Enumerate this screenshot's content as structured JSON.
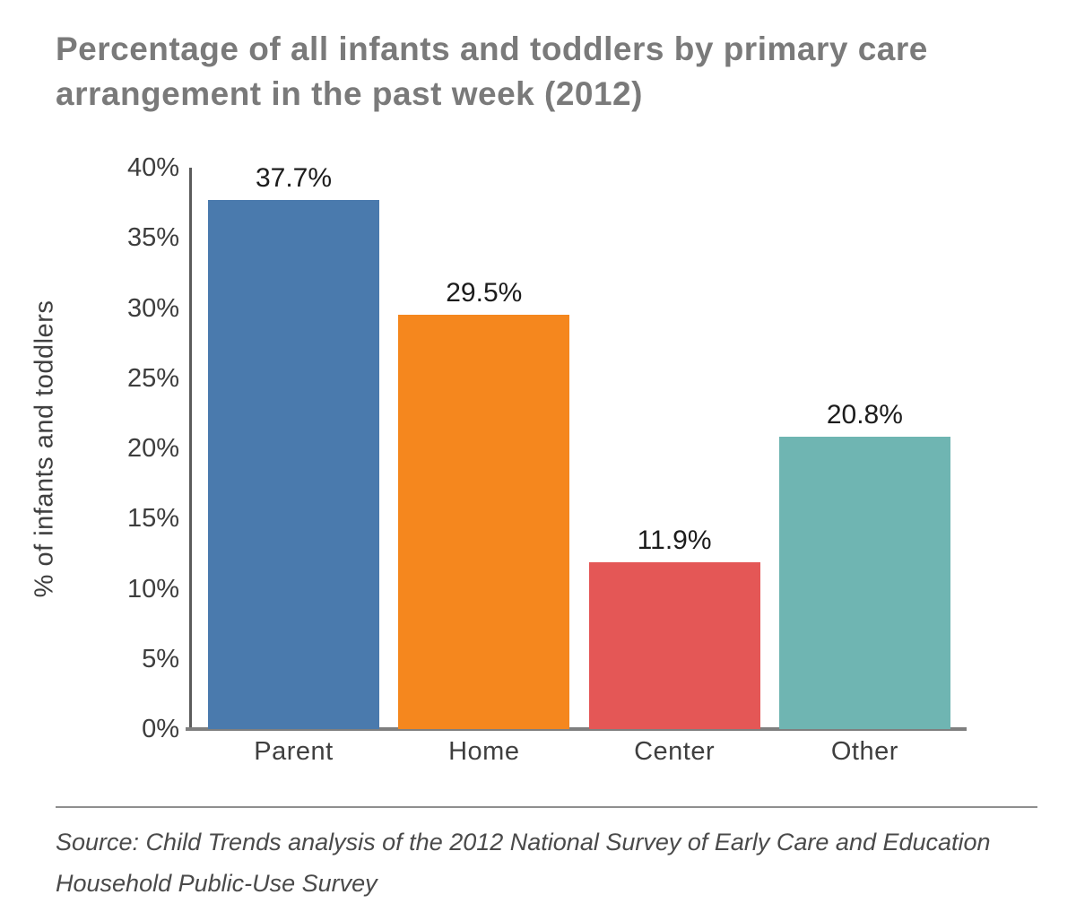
{
  "title": "Percentage of all infants and toddlers by primary care arrangement in the past week (2012)",
  "source": "Source: Child Trends analysis of the 2012 National Survey of Early Care and Education Household Public-Use Survey",
  "chart_data": {
    "type": "bar",
    "categories": [
      "Parent",
      "Home",
      "Center",
      "Other"
    ],
    "values": [
      37.7,
      29.5,
      11.9,
      20.8
    ],
    "value_labels": [
      "37.7%",
      "29.5%",
      "11.9%",
      "20.8%"
    ],
    "bar_colors": [
      "#4a7aad",
      "#f5871e",
      "#e45756",
      "#6fb5b2"
    ],
    "title": "Percentage of all infants and toddlers by primary care arrangement in the past week (2012)",
    "xlabel": "",
    "ylabel": "% of infants and toddlers",
    "ylim": [
      0,
      40
    ],
    "yticks": [
      0,
      5,
      10,
      15,
      20,
      25,
      30,
      35,
      40
    ],
    "ytick_labels": [
      "0%",
      "5%",
      "10%",
      "15%",
      "20%",
      "25%",
      "30%",
      "35%",
      "40%"
    ],
    "grid": false,
    "legend": false,
    "source_note": "Source: Child Trends analysis of the 2012 National Survey of Early Care and Education Household Public-Use Survey"
  }
}
